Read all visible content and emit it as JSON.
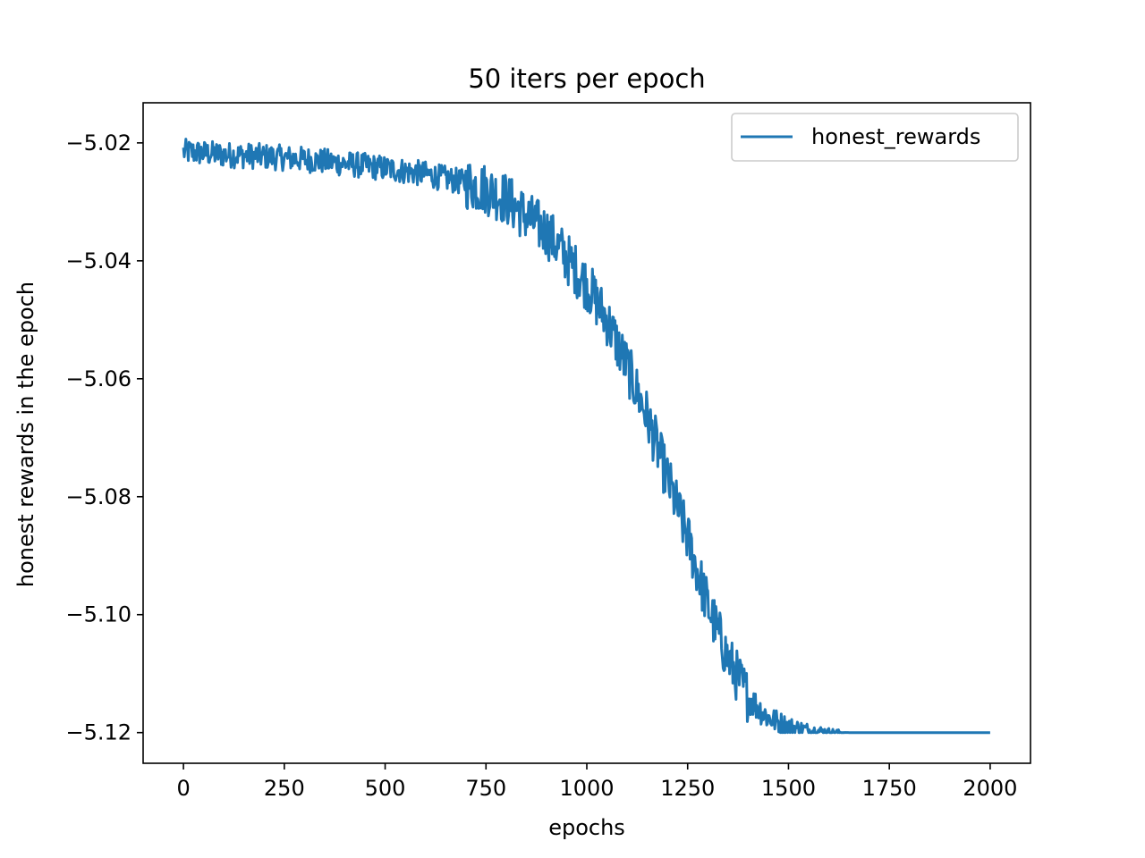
{
  "chart_data": {
    "type": "line",
    "title": "50 iters per epoch",
    "xlabel": "epochs",
    "ylabel": "honest rewards in the epoch",
    "xlim": [
      -100,
      2100
    ],
    "ylim": [
      -5.1252,
      -5.0132
    ],
    "xticks": [
      0,
      250,
      500,
      750,
      1000,
      1250,
      1500,
      1750,
      2000
    ],
    "xtick_labels": [
      "0",
      "250",
      "500",
      "750",
      "1000",
      "1250",
      "1500",
      "1750",
      "2000"
    ],
    "yticks": [
      -5.02,
      -5.04,
      -5.06,
      -5.08,
      -5.1,
      -5.12
    ],
    "ytick_labels": [
      "−5.02",
      "−5.04",
      "−5.06",
      "−5.08",
      "−5.10",
      "−5.12"
    ],
    "grid": false,
    "legend_position": "top-right",
    "series": [
      {
        "name": "honest_rewards",
        "color": "#1f77b4",
        "x": [
          0,
          100,
          200,
          300,
          400,
          500,
          600,
          700,
          750,
          800,
          850,
          900,
          950,
          1000,
          1050,
          1100,
          1150,
          1200,
          1250,
          1300,
          1350,
          1400,
          1450,
          1500,
          1550,
          1600,
          1650,
          1700,
          2000
        ],
        "y": [
          -5.0215,
          -5.022,
          -5.0223,
          -5.0228,
          -5.0235,
          -5.0243,
          -5.0253,
          -5.0268,
          -5.0278,
          -5.0295,
          -5.0325,
          -5.035,
          -5.0395,
          -5.044,
          -5.05,
          -5.058,
          -5.0665,
          -5.077,
          -5.087,
          -5.0985,
          -5.1075,
          -5.114,
          -5.1175,
          -5.119,
          -5.1196,
          -5.1199,
          -5.12,
          -5.12,
          -5.12
        ]
      }
    ]
  }
}
